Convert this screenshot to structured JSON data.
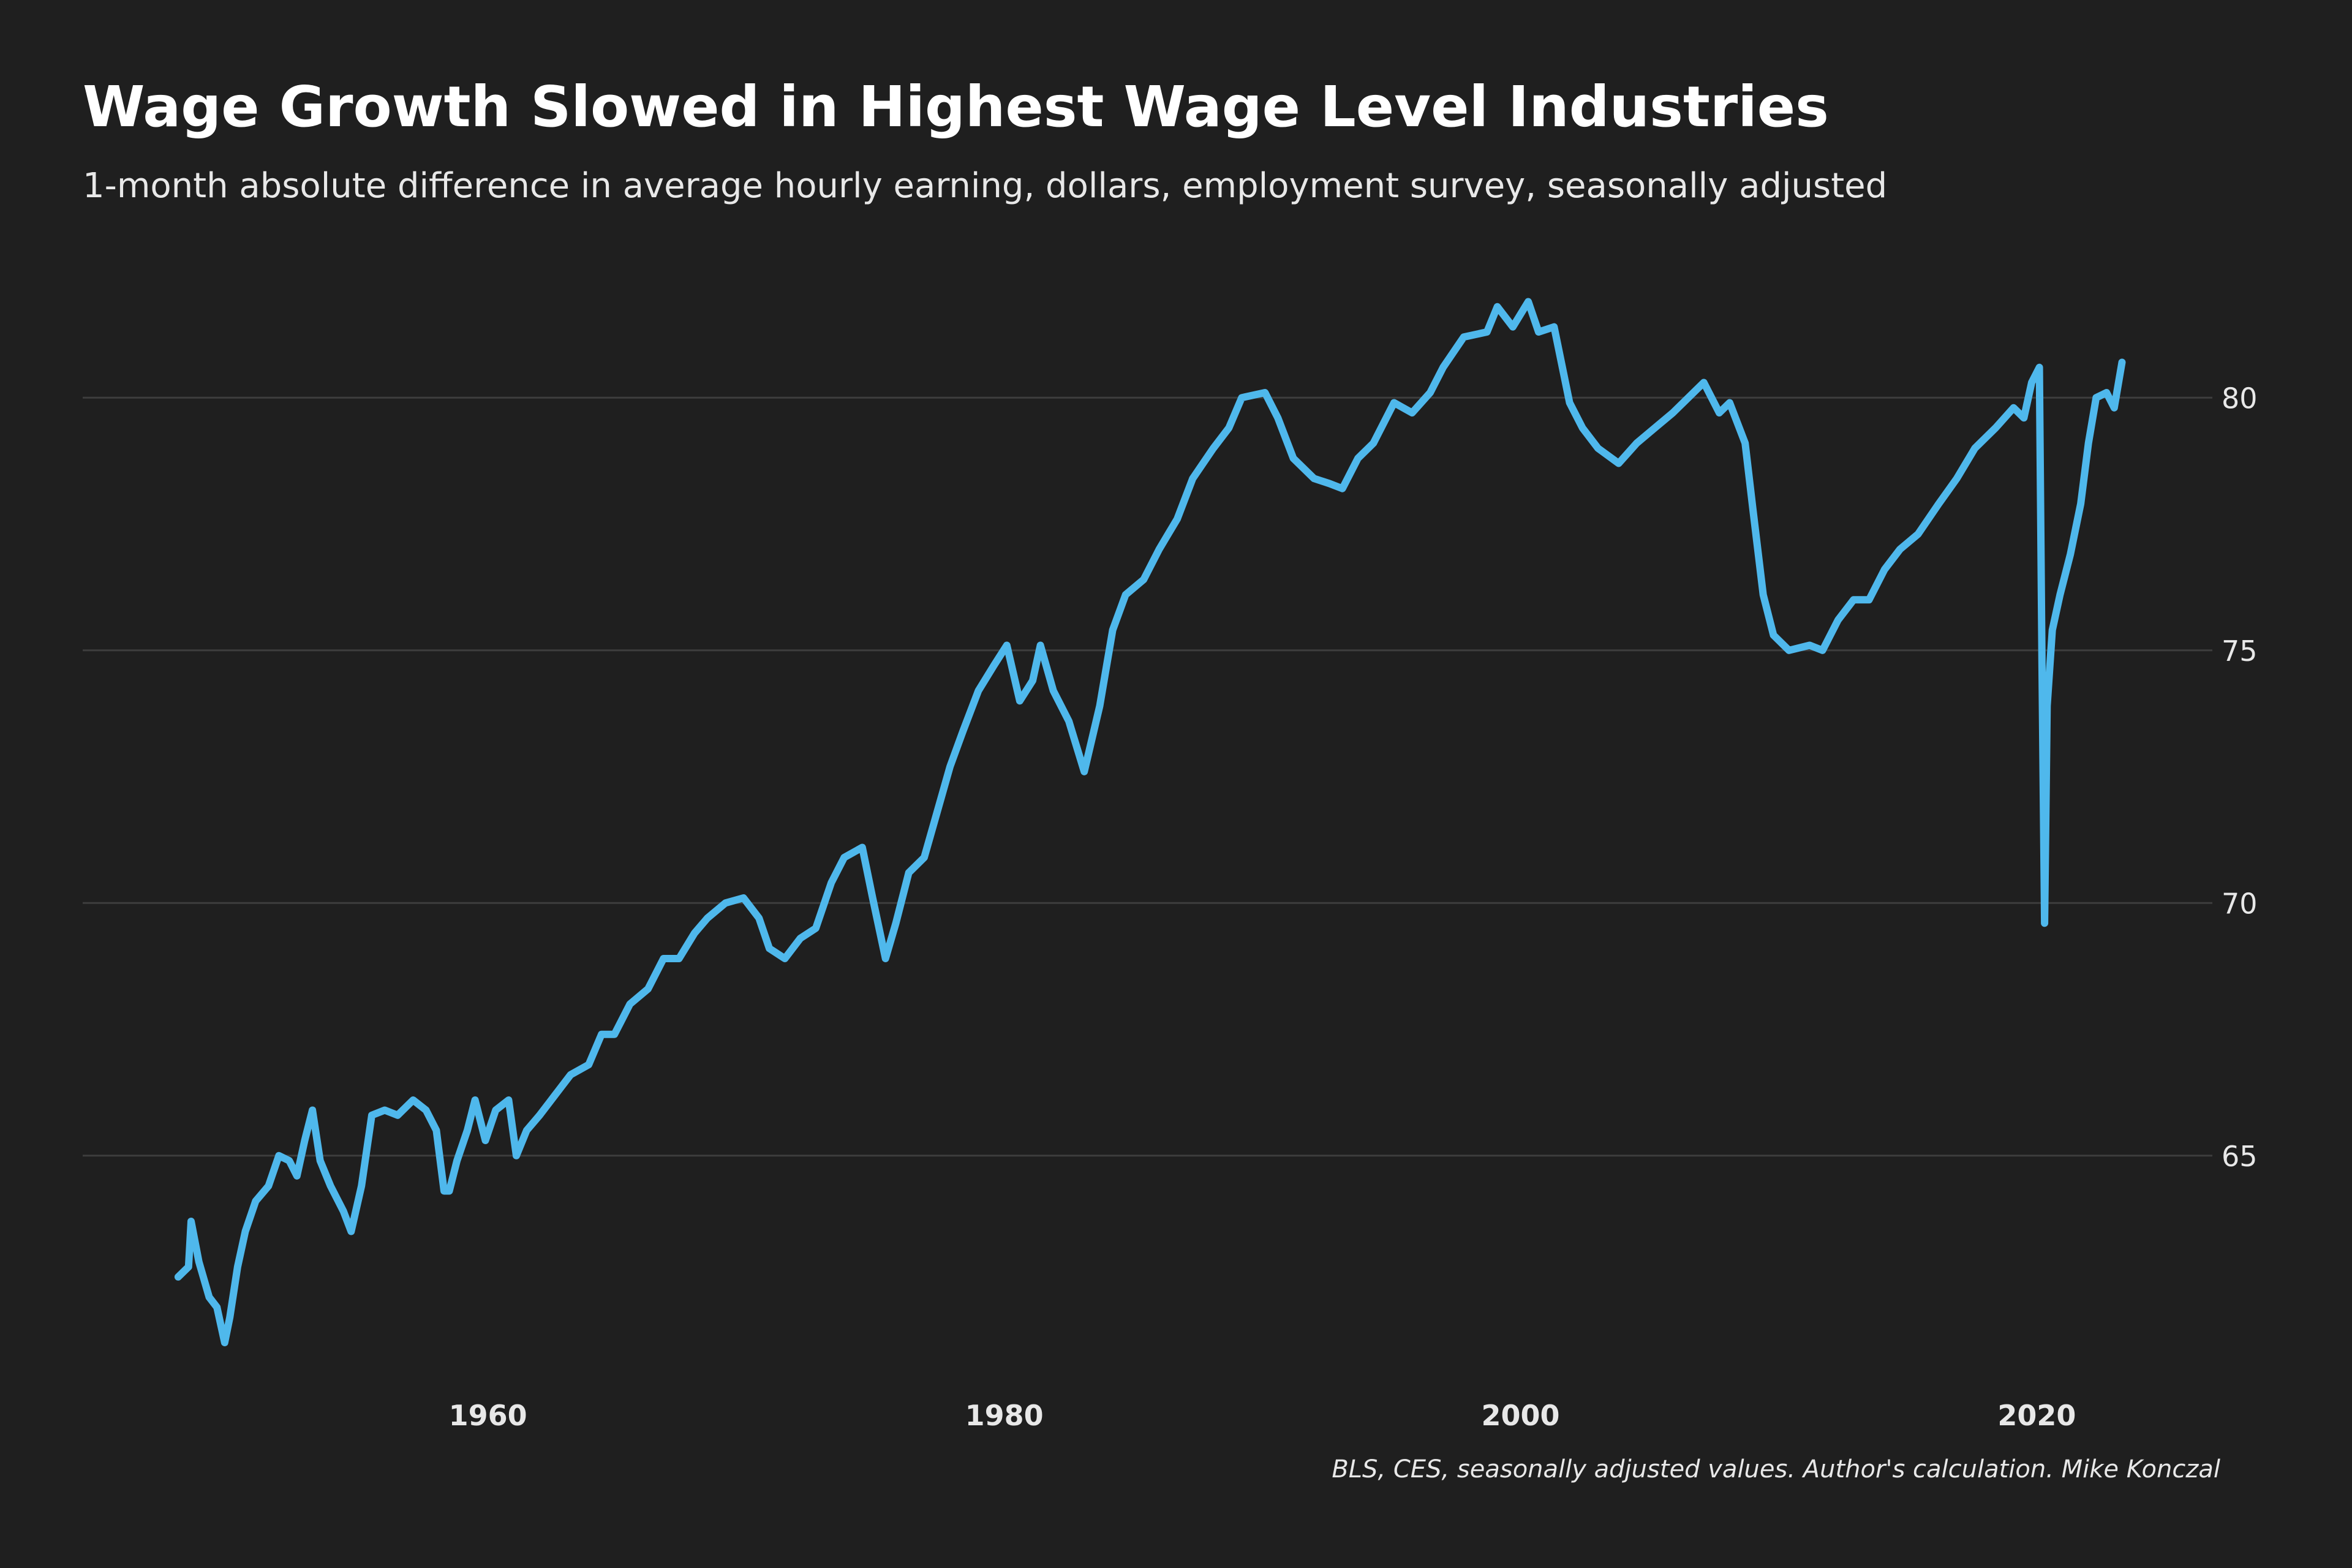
{
  "chart_data": {
    "type": "line",
    "title": "Wage Growth Slowed in Highest Wage Level Industries",
    "subtitle": "1-month absolute difference in average hourly earning, dollars, employment survey, seasonally adjusted",
    "source": "BLS, CES, seasonally adjusted values. Author's calculation. Mike Konczal",
    "x": [
      1948.0,
      1948.4,
      1948.5,
      1948.8,
      1949.2,
      1949.5,
      1949.8,
      1950.0,
      1950.3,
      1950.6,
      1951.0,
      1951.5,
      1951.9,
      1952.3,
      1952.6,
      1952.9,
      1953.2,
      1953.5,
      1953.9,
      1954.4,
      1954.7,
      1955.1,
      1955.5,
      1956.0,
      1956.5,
      1957.1,
      1957.6,
      1958.0,
      1958.3,
      1958.5,
      1958.8,
      1959.2,
      1959.5,
      1959.9,
      1960.3,
      1960.8,
      1961.1,
      1961.5,
      1962.0,
      1962.6,
      1963.2,
      1963.9,
      1964.4,
      1964.9,
      1965.5,
      1966.2,
      1966.8,
      1967.4,
      1968.0,
      1968.5,
      1969.2,
      1969.9,
      1970.5,
      1970.9,
      1971.5,
      1972.1,
      1972.7,
      1973.3,
      1973.8,
      1974.5,
      1974.9,
      1975.4,
      1975.8,
      1976.3,
      1976.9,
      1977.4,
      1977.9,
      1978.4,
      1979.0,
      1979.6,
      1980.1,
      1980.6,
      1981.1,
      1981.4,
      1981.9,
      1982.5,
      1983.1,
      1983.7,
      1984.2,
      1984.7,
      1985.4,
      1986.0,
      1986.7,
      1987.3,
      1988.1,
      1988.7,
      1989.2,
      1990.1,
      1990.6,
      1991.2,
      1992.0,
      1992.6,
      1993.1,
      1993.7,
      1994.3,
      1995.1,
      1995.8,
      1996.5,
      1997.0,
      1997.8,
      1998.7,
      1999.1,
      1999.7,
      2000.3,
      2000.7,
      2001.3,
      2001.9,
      2002.4,
      2003.0,
      2003.8,
      2004.5,
      2005.2,
      2005.9,
      2006.5,
      2007.1,
      2007.7,
      2008.1,
      2008.7,
      2009.0,
      2009.4,
      2009.8,
      2010.4,
      2011.2,
      2011.7,
      2012.3,
      2012.9,
      2013.5,
      2014.1,
      2014.7,
      2015.4,
      2016.2,
      2016.9,
      2017.6,
      2018.4,
      2019.1,
      2019.5,
      2019.8,
      2020.1,
      2020.2,
      2020.3,
      2020.4,
      2020.6,
      2020.9,
      2021.3,
      2021.7,
      2022.0,
      2022.3,
      2022.7,
      2023.0,
      2023.3
    ],
    "series": [
      {
        "color": "#4fb8ec",
        "values": [
          62.6,
          62.8,
          63.7,
          62.9,
          62.2,
          62.0,
          61.3,
          61.8,
          62.8,
          63.5,
          64.1,
          64.4,
          65.0,
          64.9,
          64.6,
          65.3,
          65.9,
          64.9,
          64.4,
          63.9,
          63.5,
          64.4,
          65.8,
          65.9,
          65.8,
          66.1,
          65.9,
          65.5,
          64.3,
          64.3,
          64.9,
          65.5,
          66.1,
          65.3,
          65.9,
          66.1,
          65.0,
          65.5,
          65.8,
          66.2,
          66.6,
          66.8,
          67.4,
          67.4,
          68.0,
          68.3,
          68.9,
          68.9,
          69.4,
          69.7,
          70.0,
          70.1,
          69.7,
          69.1,
          68.9,
          69.3,
          69.5,
          70.4,
          70.9,
          71.1,
          70.1,
          68.9,
          69.6,
          70.6,
          70.9,
          71.8,
          72.7,
          73.4,
          74.2,
          74.7,
          75.1,
          74.0,
          74.4,
          75.1,
          74.2,
          73.6,
          72.6,
          73.9,
          75.4,
          76.1,
          76.4,
          77.0,
          77.6,
          78.4,
          79.0,
          79.4,
          80.0,
          80.1,
          79.6,
          78.8,
          78.4,
          78.3,
          78.2,
          78.8,
          79.1,
          79.9,
          79.7,
          80.1,
          80.6,
          81.2,
          81.3,
          81.8,
          81.4,
          81.9,
          81.3,
          81.4,
          79.9,
          79.4,
          79.0,
          78.7,
          79.1,
          79.4,
          79.7,
          80.0,
          80.3,
          79.7,
          79.9,
          79.1,
          77.8,
          76.1,
          75.3,
          75.0,
          75.1,
          75.0,
          75.6,
          76.0,
          76.0,
          76.6,
          77.0,
          77.3,
          77.9,
          78.4,
          79.0,
          79.4,
          79.8,
          79.6,
          80.3,
          80.6,
          74.8,
          69.6,
          73.9,
          75.4,
          76.1,
          76.9,
          77.9,
          79.1,
          80.0,
          80.1,
          79.8,
          80.7
        ]
      }
    ],
    "xlim": [
      1944.3,
      2026.8
    ],
    "xticks": [
      1960,
      1980,
      2000,
      2020
    ],
    "ylim": [
      60.5,
      82.5
    ],
    "yticks": [
      65,
      70,
      75,
      80
    ],
    "grid": true
  }
}
